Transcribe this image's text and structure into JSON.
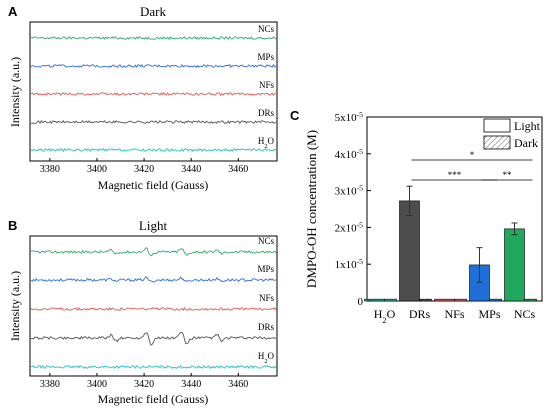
{
  "panels": {
    "A": {
      "label": "A",
      "title": "Dark",
      "ylabel": "Intensity (a.u.)",
      "xlabel": "Magnetic field (Gauss)",
      "xticks": [
        "3380",
        "3400",
        "3420",
        "3440",
        "3460"
      ]
    },
    "B": {
      "label": "B",
      "title": "Light",
      "ylabel": "Intensity (a.u.)",
      "xlabel": "Magnetic field (Gauss)",
      "xticks": [
        "3380",
        "3400",
        "3420",
        "3440",
        "3460"
      ]
    },
    "C": {
      "label": "C",
      "ylabel": "DMPO-OH concentration (M)",
      "yticks": [
        "0",
        "1x10-5",
        "2x10-5",
        "3x10-5",
        "4x10-5",
        "5x10-5"
      ],
      "legend": [
        "Light",
        "Dark"
      ],
      "significance": [
        "*",
        "***",
        "**"
      ]
    }
  },
  "chart_data": [
    {
      "type": "line",
      "panel": "A",
      "title": "Dark",
      "xlabel": "Magnetic field (Gauss)",
      "ylabel": "Intensity (a.u.)",
      "xlim": [
        3372,
        3476
      ],
      "series": [
        {
          "name": "NCs",
          "color": "#2eaa6e",
          "signal": "noise"
        },
        {
          "name": "MPs",
          "color": "#2f6fd6",
          "signal": "noise"
        },
        {
          "name": "NFs",
          "color": "#e05a5a",
          "signal": "noise"
        },
        {
          "name": "DRs",
          "color": "#555555",
          "signal": "noise"
        },
        {
          "name": "H2O",
          "color": "#22c1c1",
          "signal": "noise"
        }
      ]
    },
    {
      "type": "line",
      "panel": "B",
      "title": "Light",
      "xlabel": "Magnetic field (Gauss)",
      "ylabel": "Intensity (a.u.)",
      "xlim": [
        3372,
        3476
      ],
      "peak_fields": [
        3407,
        3422,
        3437,
        3452
      ],
      "series": [
        {
          "name": "NCs",
          "color": "#2eaa6e",
          "signal": "DMPO-OH quartet",
          "relative_amplitude": 0.55
        },
        {
          "name": "MPs",
          "color": "#2f6fd6",
          "signal": "DMPO-OH quartet",
          "relative_amplitude": 0.35
        },
        {
          "name": "NFs",
          "color": "#e05a5a",
          "signal": "noise",
          "relative_amplitude": 0
        },
        {
          "name": "DRs",
          "color": "#555555",
          "signal": "DMPO-OH quartet",
          "relative_amplitude": 1.0
        },
        {
          "name": "H2O",
          "color": "#22c1c1",
          "signal": "noise",
          "relative_amplitude": 0
        }
      ]
    },
    {
      "type": "bar",
      "panel": "C",
      "ylabel": "DMPO-OH concentration (M)",
      "ylim": [
        0,
        5e-05
      ],
      "categories": [
        "H2O",
        "DRs",
        "NFs",
        "MPs",
        "NCs"
      ],
      "colors": [
        "#1fb3b3",
        "#4d4d4d",
        "#e05a5a",
        "#1f6fd6",
        "#1fa85e"
      ],
      "series": [
        {
          "name": "Light",
          "values": [
            5e-07,
            2.72e-05,
            5e-07,
            9.8e-06,
            1.96e-05
          ],
          "errors": [
            0,
            4e-06,
            0,
            4.7e-06,
            1.6e-06
          ]
        },
        {
          "name": "Dark",
          "values": [
            5e-07,
            5e-07,
            5e-07,
            5e-07,
            5e-07
          ]
        }
      ],
      "legend_position": "top-right"
    }
  ]
}
